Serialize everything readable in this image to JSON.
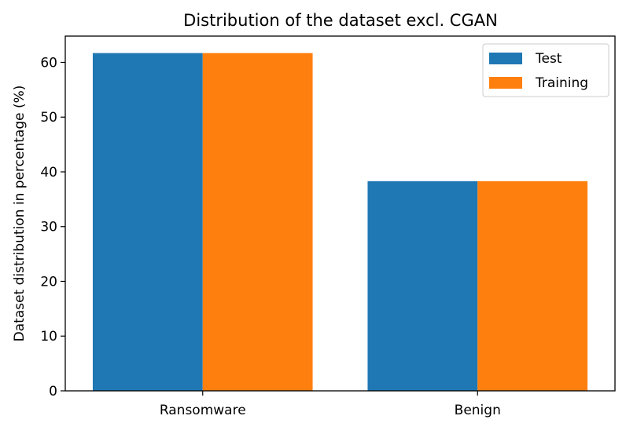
{
  "chart_data": {
    "type": "bar",
    "title": "Distribution of the dataset excl. CGAN",
    "xlabel": "",
    "ylabel": "Dataset distribution in percentage (%)",
    "categories": [
      "Ransomware",
      "Benign"
    ],
    "series": [
      {
        "name": "Test",
        "values": [
          61.7,
          38.3
        ],
        "color": "#1f77b4"
      },
      {
        "name": "Training",
        "values": [
          61.7,
          38.3
        ],
        "color": "#ff7f0e"
      }
    ],
    "ylim": [
      0,
      64.8
    ],
    "yticks": [
      0,
      10,
      20,
      30,
      40,
      50,
      60
    ],
    "grid": false,
    "legend_position": "top-right"
  }
}
